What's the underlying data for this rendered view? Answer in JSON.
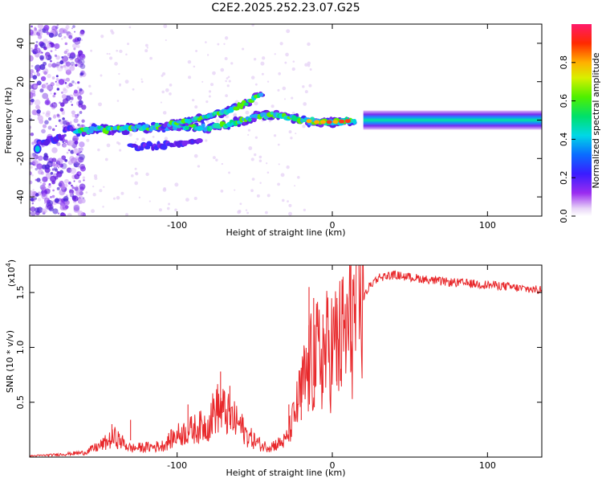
{
  "title": "C2E2.2025.252.23.07.G25",
  "chart_data": [
    {
      "type": "heatmap",
      "xlabel": "Height of straight line (km)",
      "ylabel": "Frequency (Hz)",
      "xlim": [
        -195,
        135
      ],
      "ylim": [
        -50,
        50
      ],
      "xticks": [
        -100,
        0,
        100
      ],
      "xtick_labels": [
        "-100",
        "0",
        "100"
      ],
      "yticks": [
        -40,
        -20,
        0,
        20,
        40
      ],
      "ytick_labels": [
        "-40",
        "-20",
        "0",
        "20",
        "40"
      ],
      "colorbar": {
        "label": "Normalized spectral amplitude",
        "range": [
          0,
          1
        ],
        "ticks": [
          0.0,
          0.2,
          0.4,
          0.6,
          0.8
        ],
        "tick_labels": [
          "0.0",
          "0.2",
          "0.4",
          "0.6",
          "0.8"
        ]
      },
      "features": {
        "main_track": {
          "x": [
            -195,
            -185,
            -170,
            -155,
            -140,
            -120,
            -100,
            -80,
            -60,
            -48,
            -40,
            -30,
            -20,
            -10,
            0,
            20,
            60,
            100,
            135
          ],
          "freq": [
            -15,
            -12,
            -6,
            -5,
            -5,
            -4,
            -3,
            -4,
            -1,
            2,
            3,
            2,
            0,
            -1,
            -1,
            0,
            0,
            0,
            0
          ]
        },
        "upper_branch": {
          "x": [
            -110,
            -90,
            -70,
            -55,
            -45
          ],
          "freq": [
            -3,
            0,
            4,
            9,
            14
          ]
        },
        "lower_branch": {
          "x": [
            -130,
            -110,
            -95,
            -85
          ],
          "freq": [
            -14,
            -13,
            -12,
            -11
          ]
        },
        "noise_region_x": [
          -195,
          -160
        ]
      }
    },
    {
      "type": "line",
      "xlabel": "Height of straight line (km)",
      "ylabel": "SNR (10 * v/v)",
      "scale_label": "(x10",
      "scale_exp": "4",
      "xlim": [
        -195,
        135
      ],
      "ylim": [
        0,
        1.75
      ],
      "xticks": [
        -100,
        0,
        100
      ],
      "xtick_labels": [
        "-100",
        "0",
        "100"
      ],
      "yticks": [
        0.5,
        1.0,
        1.5
      ],
      "ytick_labels": [
        "0.5",
        "1.0",
        "1.5"
      ],
      "series": [
        {
          "name": "SNR",
          "color": "#e8282b",
          "envelope_x": [
            -195,
            -180,
            -160,
            -150,
            -140,
            -130,
            -110,
            -100,
            -90,
            -80,
            -75,
            -70,
            -65,
            -60,
            -55,
            -50,
            -45,
            -40,
            -35,
            -30,
            -25,
            -20,
            -15,
            -10,
            -5,
            0,
            5,
            10,
            15,
            20,
            25,
            30,
            40,
            50,
            60,
            70,
            80,
            90,
            100,
            110,
            120,
            135
          ],
          "envelope_y": [
            0.01,
            0.02,
            0.04,
            0.1,
            0.18,
            0.08,
            0.1,
            0.2,
            0.25,
            0.3,
            0.45,
            0.42,
            0.35,
            0.3,
            0.2,
            0.15,
            0.1,
            0.1,
            0.12,
            0.15,
            0.35,
            0.6,
            0.8,
            0.9,
            0.95,
            1.0,
            1.05,
            1.15,
            1.3,
            1.45,
            1.58,
            1.64,
            1.66,
            1.64,
            1.62,
            1.6,
            1.59,
            1.58,
            1.57,
            1.56,
            1.54,
            1.52
          ]
        }
      ],
      "spikes": [
        {
          "x": -142,
          "y": 0.3
        },
        {
          "x": -130,
          "y": 0.34
        },
        {
          "x": -93,
          "y": 0.48
        },
        {
          "x": -72,
          "y": 0.78
        },
        {
          "x": -66,
          "y": 0.65
        },
        {
          "x": -28,
          "y": 0.48
        },
        {
          "x": -20,
          "y": 0.75
        },
        {
          "x": -15,
          "y": 1.55
        },
        {
          "x": -12,
          "y": 1.45
        },
        {
          "x": -6,
          "y": 1.3
        },
        {
          "x": 3,
          "y": 1.45
        },
        {
          "x": 12,
          "y": 1.75
        }
      ]
    }
  ]
}
